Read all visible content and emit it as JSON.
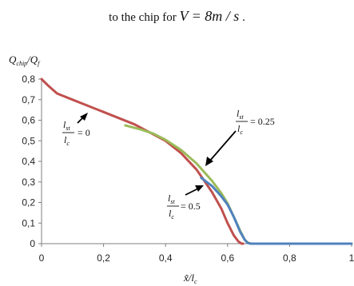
{
  "caption": {
    "prefix": "to the chip for ",
    "math": "V = 8m / s",
    "suffix": " ."
  },
  "chart_data": {
    "type": "line",
    "xlabel": "x̃/l",
    "xlabel_sub": "c",
    "ylabel": "Q",
    "ylabel_sub1": "chip",
    "ylabel_mid": "/Q",
    "ylabel_sub2": "f",
    "xlim": [
      0,
      1
    ],
    "ylim": [
      0,
      0.8
    ],
    "x_ticks": [
      "0",
      "0,2",
      "0,4",
      "0,6",
      "0,8",
      "1"
    ],
    "y_ticks": [
      "0",
      "0,1",
      "0,2",
      "0,3",
      "0,4",
      "0,5",
      "0,6",
      "0,7",
      "0,8"
    ],
    "grid": false,
    "series": [
      {
        "color": "#c0504d",
        "x": [
          0.0,
          0.02,
          0.05,
          0.1,
          0.2,
          0.3,
          0.4,
          0.45,
          0.5,
          0.55,
          0.58,
          0.6,
          0.62,
          0.635,
          0.645,
          0.65
        ],
        "y": [
          0.8,
          0.77,
          0.73,
          0.7,
          0.64,
          0.58,
          0.5,
          0.44,
          0.36,
          0.25,
          0.17,
          0.1,
          0.04,
          0.01,
          0.0,
          0.0
        ]
      },
      {
        "color": "#9bbb59",
        "x": [
          0.27,
          0.32,
          0.36,
          0.4,
          0.45,
          0.5,
          0.55,
          0.58,
          0.6,
          0.62,
          0.64,
          0.655,
          0.665,
          0.675
        ],
        "y": [
          0.575,
          0.555,
          0.535,
          0.505,
          0.455,
          0.39,
          0.305,
          0.245,
          0.195,
          0.13,
          0.065,
          0.02,
          0.005,
          0.0
        ]
      },
      {
        "color": "#4f81bd",
        "x": [
          0.515,
          0.55,
          0.58,
          0.6,
          0.62,
          0.64,
          0.655,
          0.665,
          0.675,
          0.7,
          0.75,
          0.8,
          0.9,
          1.0
        ],
        "y": [
          0.32,
          0.28,
          0.23,
          0.19,
          0.13,
          0.06,
          0.02,
          0.003,
          0.0,
          0.0,
          0.0,
          0.0,
          0.0,
          0.0
        ]
      }
    ],
    "annotations": [
      {
        "num": "l",
        "num_sub": "st",
        "den": "l",
        "den_sub": "c",
        "value": "= 0"
      },
      {
        "num": "l",
        "num_sub": "st",
        "den": "l",
        "den_sub": "c",
        "value": "= 0.25"
      },
      {
        "num": "l",
        "num_sub": "st",
        "den": "l",
        "den_sub": "c",
        "value": "= 0.5"
      }
    ]
  }
}
